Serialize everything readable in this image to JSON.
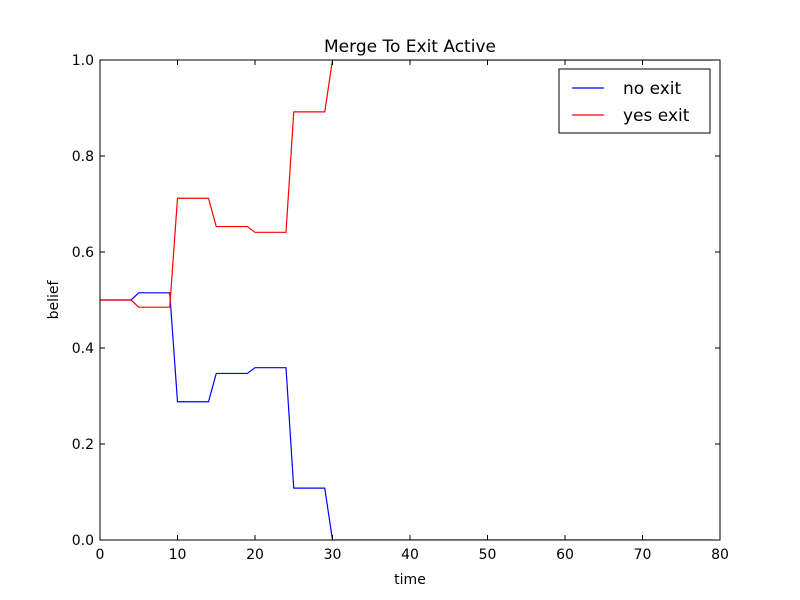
{
  "chart_data": {
    "type": "line",
    "title": "Merge To Exit Active",
    "xlabel": "time",
    "ylabel": "belief",
    "xlim": [
      0,
      80
    ],
    "ylim": [
      0,
      1.0
    ],
    "xticks": [
      "0",
      "10",
      "20",
      "30",
      "40",
      "50",
      "60",
      "70",
      "80"
    ],
    "yticks": [
      "0.0",
      "0.2",
      "0.4",
      "0.6",
      "0.8",
      "1.0"
    ],
    "grid": false,
    "legend_position": "top-right",
    "series": [
      {
        "name": "no exit",
        "color": "#0000ff",
        "points": [
          [
            0,
            0.5
          ],
          [
            4,
            0.5
          ],
          [
            5,
            0.515
          ],
          [
            9,
            0.515
          ],
          [
            10,
            0.288
          ],
          [
            14,
            0.288
          ],
          [
            15,
            0.347
          ],
          [
            19,
            0.347
          ],
          [
            20,
            0.359
          ],
          [
            24,
            0.359
          ],
          [
            25,
            0.108
          ],
          [
            29,
            0.108
          ],
          [
            30,
            0.0
          ],
          [
            79,
            0.0
          ]
        ]
      },
      {
        "name": "yes exit",
        "color": "#ff0000",
        "points": [
          [
            0,
            0.5
          ],
          [
            4,
            0.5
          ],
          [
            5,
            0.485
          ],
          [
            9,
            0.485
          ],
          [
            10,
            0.712
          ],
          [
            14,
            0.712
          ],
          [
            15,
            0.653
          ],
          [
            19,
            0.653
          ],
          [
            20,
            0.641
          ],
          [
            24,
            0.641
          ],
          [
            25,
            0.892
          ],
          [
            29,
            0.892
          ],
          [
            30,
            1.0
          ],
          [
            79,
            1.0
          ]
        ]
      }
    ]
  }
}
